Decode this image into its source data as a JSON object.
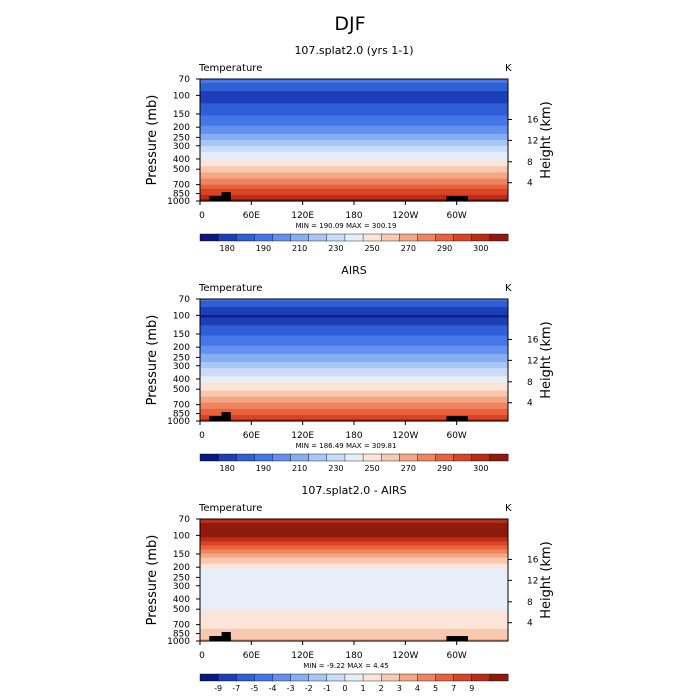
{
  "main_title": "DJF",
  "chart_data": [
    {
      "type": "heatmap",
      "title": "107.splat2.0 (yrs 1-1)",
      "field_label": "Temperature",
      "unit_label": "K",
      "ylabel": "Pressure (mb)",
      "ylabel_right": "Height (km)",
      "pressure_ticks": [
        "70",
        "100",
        "150",
        "200",
        "250",
        "300",
        "400",
        "500",
        "700",
        "850",
        "1000"
      ],
      "height_ticks": [
        "4",
        "8",
        "12",
        "16"
      ],
      "lon_ticks": [
        "0",
        "60E",
        "120E",
        "180",
        "120W",
        "60W"
      ],
      "stats": "MIN = 190.09   MAX = 300.19",
      "min": 190.09,
      "max": 300.19,
      "ylim": [
        1000,
        70
      ],
      "profile_K": [
        [
          70,
          212
        ],
        [
          100,
          199
        ],
        [
          150,
          208
        ],
        [
          200,
          217
        ],
        [
          250,
          226
        ],
        [
          300,
          234
        ],
        [
          400,
          248
        ],
        [
          500,
          258
        ],
        [
          700,
          275
        ],
        [
          850,
          285
        ],
        [
          1000,
          296
        ]
      ],
      "colorbar": {
        "labels": [
          "180",
          "190",
          "210",
          "230",
          "250",
          "270",
          "290",
          "300"
        ],
        "colors": [
          "#0a1a80",
          "#1c3fb8",
          "#2f5fd6",
          "#4677e8",
          "#6490ee",
          "#86aef2",
          "#a9c6f5",
          "#cadcf7",
          "#e7eef8",
          "#fbe5d8",
          "#f8c9b0",
          "#f4a784",
          "#ef855e",
          "#e8623c",
          "#d94425",
          "#bb2c16",
          "#8e1a0d"
        ]
      }
    },
    {
      "type": "heatmap",
      "title": "AIRS",
      "field_label": "Temperature",
      "unit_label": "K",
      "ylabel": "Pressure (mb)",
      "ylabel_right": "Height (km)",
      "pressure_ticks": [
        "70",
        "100",
        "150",
        "200",
        "250",
        "300",
        "400",
        "500",
        "700",
        "850",
        "1000"
      ],
      "height_ticks": [
        "4",
        "8",
        "12",
        "16"
      ],
      "lon_ticks": [
        "0",
        "60E",
        "120E",
        "180",
        "120W",
        "60W"
      ],
      "stats": "MIN = 186.49   MAX = 309.81",
      "min": 186.49,
      "max": 309.81,
      "ylim": [
        1000,
        70
      ],
      "profile_K": [
        [
          70,
          210
        ],
        [
          100,
          193
        ],
        [
          150,
          207
        ],
        [
          200,
          217
        ],
        [
          250,
          226
        ],
        [
          300,
          234
        ],
        [
          400,
          248
        ],
        [
          500,
          258
        ],
        [
          700,
          275
        ],
        [
          850,
          286
        ],
        [
          1000,
          298
        ]
      ],
      "colorbar": {
        "labels": [
          "180",
          "190",
          "210",
          "230",
          "250",
          "270",
          "290",
          "300"
        ],
        "colors": [
          "#0a1a80",
          "#1c3fb8",
          "#2f5fd6",
          "#4677e8",
          "#6490ee",
          "#86aef2",
          "#a9c6f5",
          "#cadcf7",
          "#e7eef8",
          "#fbe5d8",
          "#f8c9b0",
          "#f4a784",
          "#ef855e",
          "#e8623c",
          "#d94425",
          "#bb2c16",
          "#8e1a0d"
        ]
      }
    },
    {
      "type": "heatmap",
      "title": "107.splat2.0 - AIRS",
      "field_label": "Temperature",
      "unit_label": "K",
      "ylabel": "Pressure (mb)",
      "ylabel_right": "Height (km)",
      "pressure_ticks": [
        "70",
        "100",
        "150",
        "200",
        "250",
        "300",
        "400",
        "500",
        "700",
        "850",
        "1000"
      ],
      "height_ticks": [
        "4",
        "8",
        "12",
        "16"
      ],
      "lon_ticks": [
        "0",
        "60E",
        "120E",
        "180",
        "120W",
        "60W"
      ],
      "stats": "MIN =  -9.22   MAX =   4.45",
      "min": -9.22,
      "max": 4.45,
      "ylim": [
        1000,
        70
      ],
      "profile_K": [
        [
          70,
          3.5
        ],
        [
          100,
          4.0
        ],
        [
          150,
          0.5
        ],
        [
          200,
          -2.0
        ],
        [
          250,
          -2.0
        ],
        [
          300,
          -2.2
        ],
        [
          400,
          -2.3
        ],
        [
          500,
          -2.0
        ],
        [
          700,
          -1.5
        ],
        [
          850,
          -0.8
        ],
        [
          1000,
          -0.3
        ]
      ],
      "colorbar": {
        "labels": [
          "-9",
          "-7",
          "-5",
          "-4",
          "-3",
          "-2",
          "-1",
          "0",
          "1",
          "2",
          "3",
          "4",
          "5",
          "7",
          "9"
        ],
        "colors": [
          "#0a1a80",
          "#1c3fb8",
          "#2f5fd6",
          "#4677e8",
          "#6490ee",
          "#86aef2",
          "#a9c6f5",
          "#cadcf7",
          "#e7eef8",
          "#fbe5d8",
          "#f8c9b0",
          "#f4a784",
          "#ef855e",
          "#e8623c",
          "#d94425",
          "#bb2c16",
          "#8e1a0d"
        ]
      }
    }
  ]
}
